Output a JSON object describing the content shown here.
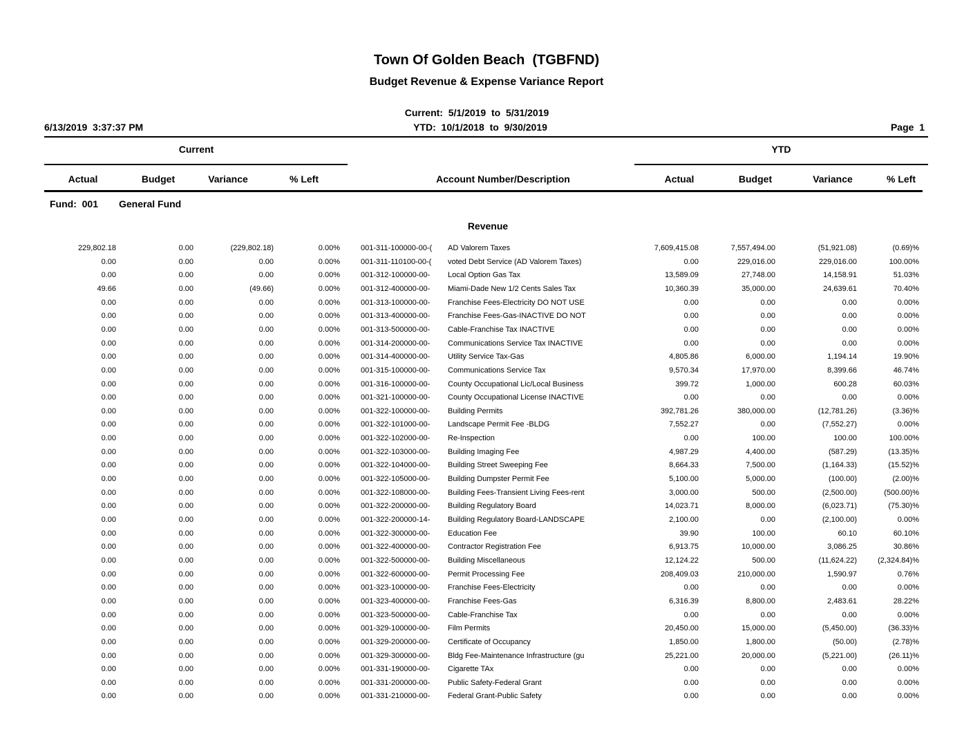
{
  "header": {
    "title": "Town Of Golden Beach  (TGBFND)",
    "subtitle": "Budget Revenue & Expense Variance Report",
    "current_range": "Current:  5/1/2019  to  5/31/2019",
    "ytd_range": "YTD:  10/1/2018  to  9/30/2019",
    "printed": "6/13/2019  3:37:37 PM",
    "page": "Page  1"
  },
  "groups": {
    "current": "Current",
    "ytd": "YTD"
  },
  "columns": [
    "Actual",
    "Budget",
    "Variance",
    "% Left",
    "Account Number/Description",
    "Actual",
    "Budget",
    "Variance",
    "% Left"
  ],
  "fund": {
    "label": "Fund:  001",
    "name": "General Fund"
  },
  "section": "Revenue",
  "table": {
    "rows": [
      [
        "229,802.18",
        "0.00",
        "(229,802.18)",
        "0.00%",
        "001-311-100000-00-(",
        "AD Valorem Taxes",
        "7,609,415.08",
        "7,557,494.00",
        "(51,921.08)",
        "(0.69)%"
      ],
      [
        "0.00",
        "0.00",
        "0.00",
        "0.00%",
        "001-311-110100-00-(",
        "voted Debt Service (AD Valorem Taxes)",
        "0.00",
        "229,016.00",
        "229,016.00",
        "100.00%"
      ],
      [
        "0.00",
        "0.00",
        "0.00",
        "0.00%",
        "001-312-100000-00-",
        "Local Option Gas Tax",
        "13,589.09",
        "27,748.00",
        "14,158.91",
        "51.03%"
      ],
      [
        "49.66",
        "0.00",
        "(49.66)",
        "0.00%",
        "001-312-400000-00-",
        "Miami-Dade New 1/2 Cents Sales Tax",
        "10,360.39",
        "35,000.00",
        "24,639.61",
        "70.40%"
      ],
      [
        "0.00",
        "0.00",
        "0.00",
        "0.00%",
        "001-313-100000-00-",
        "Franchise Fees-Electricity DO NOT USE",
        "0.00",
        "0.00",
        "0.00",
        "0.00%"
      ],
      [
        "0.00",
        "0.00",
        "0.00",
        "0.00%",
        "001-313-400000-00-",
        "Franchise Fees-Gas-INACTIVE DO NOT",
        "0.00",
        "0.00",
        "0.00",
        "0.00%"
      ],
      [
        "0.00",
        "0.00",
        "0.00",
        "0.00%",
        "001-313-500000-00-",
        "Cable-Franchise Tax INACTIVE",
        "0.00",
        "0.00",
        "0.00",
        "0.00%"
      ],
      [
        "0.00",
        "0.00",
        "0.00",
        "0.00%",
        "001-314-200000-00-",
        "Communications Service Tax INACTIVE",
        "0.00",
        "0.00",
        "0.00",
        "0.00%"
      ],
      [
        "0.00",
        "0.00",
        "0.00",
        "0.00%",
        "001-314-400000-00-",
        "Utility Service Tax-Gas",
        "4,805.86",
        "6,000.00",
        "1,194.14",
        "19.90%"
      ],
      [
        "0.00",
        "0.00",
        "0.00",
        "0.00%",
        "001-315-100000-00-",
        "Communications Service Tax",
        "9,570.34",
        "17,970.00",
        "8,399.66",
        "46.74%"
      ],
      [
        "0.00",
        "0.00",
        "0.00",
        "0.00%",
        "001-316-100000-00-",
        "County Occupational Lic/Local Business",
        "399.72",
        "1,000.00",
        "600.28",
        "60.03%"
      ],
      [
        "0.00",
        "0.00",
        "0.00",
        "0.00%",
        "001-321-100000-00-",
        "County Occupational License INACTIVE",
        "0.00",
        "0.00",
        "0.00",
        "0.00%"
      ],
      [
        "0.00",
        "0.00",
        "0.00",
        "0.00%",
        "001-322-100000-00-",
        "Building Permits",
        "392,781.26",
        "380,000.00",
        "(12,781.26)",
        "(3.36)%"
      ],
      [
        "0.00",
        "0.00",
        "0.00",
        "0.00%",
        "001-322-101000-00-",
        "Landscape Permit Fee -BLDG",
        "7,552.27",
        "0.00",
        "(7,552.27)",
        "0.00%"
      ],
      [
        "0.00",
        "0.00",
        "0.00",
        "0.00%",
        "001-322-102000-00-",
        "Re-Inspection",
        "0.00",
        "100.00",
        "100.00",
        "100.00%"
      ],
      [
        "0.00",
        "0.00",
        "0.00",
        "0.00%",
        "001-322-103000-00-",
        "Building Imaging Fee",
        "4,987.29",
        "4,400.00",
        "(587.29)",
        "(13.35)%"
      ],
      [
        "0.00",
        "0.00",
        "0.00",
        "0.00%",
        "001-322-104000-00-",
        "Building Street Sweeping Fee",
        "8,664.33",
        "7,500.00",
        "(1,164.33)",
        "(15.52)%"
      ],
      [
        "0.00",
        "0.00",
        "0.00",
        "0.00%",
        "001-322-105000-00-",
        "Building Dumpster Permit Fee",
        "5,100.00",
        "5,000.00",
        "(100.00)",
        "(2.00)%"
      ],
      [
        "0.00",
        "0.00",
        "0.00",
        "0.00%",
        "001-322-108000-00-",
        "Building Fees-Transient Living Fees-rent",
        "3,000.00",
        "500.00",
        "(2,500.00)",
        "(500.00)%"
      ],
      [
        "0.00",
        "0.00",
        "0.00",
        "0.00%",
        "001-322-200000-00-",
        "Building Regulatory Board",
        "14,023.71",
        "8,000.00",
        "(6,023.71)",
        "(75.30)%"
      ],
      [
        "0.00",
        "0.00",
        "0.00",
        "0.00%",
        "001-322-200000-14-",
        "Building Regulatory Board-LANDSCAPE",
        "2,100.00",
        "0.00",
        "(2,100.00)",
        "0.00%"
      ],
      [
        "0.00",
        "0.00",
        "0.00",
        "0.00%",
        "001-322-300000-00-",
        "Education Fee",
        "39.90",
        "100.00",
        "60.10",
        "60.10%"
      ],
      [
        "0.00",
        "0.00",
        "0.00",
        "0.00%",
        "001-322-400000-00-",
        "Contractor Registration Fee",
        "6,913.75",
        "10,000.00",
        "3,086.25",
        "30.86%"
      ],
      [
        "0.00",
        "0.00",
        "0.00",
        "0.00%",
        "001-322-500000-00-",
        "Building Miscellaneous",
        "12,124.22",
        "500.00",
        "(11,624.22)",
        "(2,324.84)%"
      ],
      [
        "0.00",
        "0.00",
        "0.00",
        "0.00%",
        "001-322-600000-00-",
        "Permit Processing Fee",
        "208,409.03",
        "210,000.00",
        "1,590.97",
        "0.76%"
      ],
      [
        "0.00",
        "0.00",
        "0.00",
        "0.00%",
        "001-323-100000-00-",
        "Franchise Fees-Electricity",
        "0.00",
        "0.00",
        "0.00",
        "0.00%"
      ],
      [
        "0.00",
        "0.00",
        "0.00",
        "0.00%",
        "001-323-400000-00-",
        "Franchise Fees-Gas",
        "6,316.39",
        "8,800.00",
        "2,483.61",
        "28.22%"
      ],
      [
        "0.00",
        "0.00",
        "0.00",
        "0.00%",
        "001-323-500000-00-",
        "Cable-Franchise Tax",
        "0.00",
        "0.00",
        "0.00",
        "0.00%"
      ],
      [
        "0.00",
        "0.00",
        "0.00",
        "0.00%",
        "001-329-100000-00-",
        "Film Permits",
        "20,450.00",
        "15,000.00",
        "(5,450.00)",
        "(36.33)%"
      ],
      [
        "0.00",
        "0.00",
        "0.00",
        "0.00%",
        "001-329-200000-00-",
        "Certificate of Occupancy",
        "1,850.00",
        "1,800.00",
        "(50.00)",
        "(2.78)%"
      ],
      [
        "0.00",
        "0.00",
        "0.00",
        "0.00%",
        "001-329-300000-00-",
        "Bldg Fee-Maintenance Infrastructure (gu",
        "25,221.00",
        "20,000.00",
        "(5,221.00)",
        "(26.11)%"
      ],
      [
        "0.00",
        "0.00",
        "0.00",
        "0.00%",
        "001-331-190000-00-",
        "Cigarette TAx",
        "0.00",
        "0.00",
        "0.00",
        "0.00%"
      ],
      [
        "0.00",
        "0.00",
        "0.00",
        "0.00%",
        "001-331-200000-00-",
        "Public Safety-Federal Grant",
        "0.00",
        "0.00",
        "0.00",
        "0.00%"
      ],
      [
        "0.00",
        "0.00",
        "0.00",
        "0.00%",
        "001-331-210000-00-",
        "Federal Grant-Public Safety",
        "0.00",
        "0.00",
        "0.00",
        "0.00%"
      ]
    ]
  }
}
